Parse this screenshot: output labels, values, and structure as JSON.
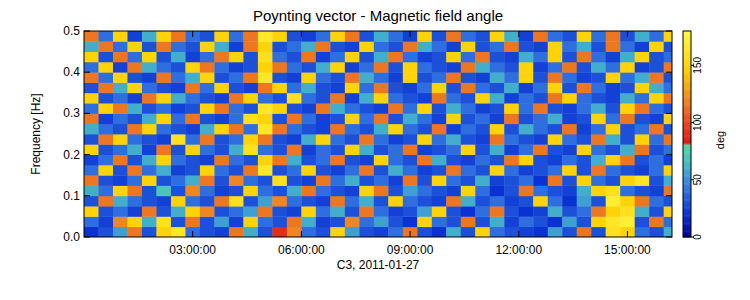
{
  "chart_data": {
    "type": "heatmap",
    "title": "Poynting vector - Magnetic field angle",
    "x_label": "C3, 2011-01-27",
    "y_label": "Frequency [Hz]",
    "xlim": [
      0,
      16.23
    ],
    "xticks": [
      {
        "value": 3,
        "label": "03:00:00"
      },
      {
        "value": 6,
        "label": "06:00:00"
      },
      {
        "value": 9,
        "label": "09:00:00"
      },
      {
        "value": 12,
        "label": "12:00:00"
      },
      {
        "value": 15,
        "label": "15:00:00"
      }
    ],
    "ylim": [
      0,
      0.5
    ],
    "yticks": [
      {
        "value": 0,
        "label": "0.0"
      },
      0.1,
      0.2,
      0.3,
      0.4,
      0.5
    ],
    "cells": {
      "x": [
        0.2,
        0.6,
        1.0,
        1.4,
        1.8,
        2.2,
        2.6,
        3.0,
        3.4,
        3.8,
        4.2,
        4.6,
        5.0,
        5.4,
        5.8,
        6.2,
        6.6,
        7.0,
        7.4,
        7.8,
        8.2,
        8.6,
        9.0,
        9.4,
        9.8,
        10.2,
        10.6,
        11.0,
        11.4,
        11.8,
        12.2,
        12.6,
        13.0,
        13.4,
        13.8,
        14.2,
        14.6,
        15.0,
        15.4,
        15.8,
        16.2
      ],
      "y": [
        0.0125,
        0.0375,
        0.0625,
        0.0875,
        0.1125,
        0.1375,
        0.1625,
        0.1875,
        0.2125,
        0.2375,
        0.2625,
        0.2875,
        0.3125,
        0.3375,
        0.3625,
        0.3875,
        0.4125,
        0.4375,
        0.4625,
        0.4875
      ],
      "values": [
        [
          20,
          30,
          55,
          115,
          30,
          150,
          165,
          40,
          30,
          25,
          115,
          60,
          30,
          90,
          120,
          40,
          30,
          150,
          55,
          30,
          25,
          40,
          115,
          30,
          20,
          60,
          30,
          150,
          40,
          30,
          25,
          20,
          55,
          30,
          115,
          30,
          160,
          150,
          40,
          30,
          60
        ],
        [
          40,
          25,
          120,
          150,
          60,
          160,
          30,
          115,
          30,
          55,
          25,
          150,
          40,
          30,
          115,
          60,
          25,
          30,
          120,
          40,
          55,
          30,
          20,
          150,
          40,
          30,
          115,
          30,
          60,
          25,
          40,
          30,
          20,
          55,
          30,
          150,
          165,
          170,
          30,
          115,
          40
        ],
        [
          150,
          30,
          40,
          25,
          115,
          30,
          60,
          150,
          120,
          30,
          40,
          55,
          115,
          30,
          25,
          150,
          40,
          60,
          30,
          115,
          40,
          25,
          30,
          55,
          150,
          30,
          20,
          40,
          115,
          30,
          20,
          25,
          60,
          30,
          40,
          115,
          150,
          160,
          60,
          30,
          150
        ],
        [
          30,
          115,
          60,
          40,
          30,
          25,
          150,
          40,
          30,
          115,
          160,
          30,
          55,
          120,
          40,
          30,
          25,
          115,
          40,
          60,
          30,
          150,
          40,
          30,
          25,
          115,
          60,
          30,
          40,
          25,
          30,
          150,
          40,
          20,
          55,
          30,
          170,
          150,
          115,
          40,
          30
        ],
        [
          60,
          40,
          150,
          115,
          30,
          70,
          30,
          120,
          40,
          25,
          30,
          150,
          40,
          30,
          60,
          115,
          40,
          30,
          25,
          150,
          115,
          30,
          55,
          40,
          30,
          25,
          150,
          40,
          20,
          30,
          115,
          40,
          30,
          25,
          60,
          150,
          160,
          40,
          30,
          25,
          115
        ],
        [
          115,
          30,
          25,
          40,
          150,
          30,
          40,
          60,
          115,
          30,
          120,
          40,
          30,
          160,
          30,
          25,
          115,
          40,
          60,
          30,
          40,
          25,
          115,
          30,
          150,
          40,
          30,
          60,
          25,
          30,
          40,
          20,
          115,
          30,
          150,
          40,
          30,
          150,
          165,
          30,
          60
        ],
        [
          40,
          150,
          30,
          115,
          40,
          60,
          25,
          30,
          150,
          40,
          30,
          115,
          165,
          30,
          40,
          150,
          30,
          25,
          40,
          115,
          30,
          60,
          40,
          25,
          30,
          115,
          40,
          30,
          150,
          40,
          25,
          30,
          40,
          150,
          30,
          115,
          40,
          30,
          25,
          40,
          150
        ],
        [
          25,
          40,
          115,
          30,
          60,
          150,
          40,
          30,
          25,
          115,
          40,
          30,
          150,
          115,
          60,
          30,
          40,
          115,
          30,
          25,
          150,
          40,
          30,
          115,
          60,
          30,
          25,
          40,
          30,
          115,
          150,
          30,
          25,
          40,
          30,
          60,
          150,
          115,
          30,
          40,
          25
        ],
        [
          150,
          30,
          40,
          60,
          25,
          115,
          30,
          150,
          40,
          30,
          60,
          160,
          40,
          30,
          115,
          25,
          40,
          30,
          150,
          60,
          30,
          40,
          115,
          25,
          30,
          40,
          150,
          30,
          60,
          25,
          40,
          115,
          30,
          25,
          150,
          40,
          30,
          60,
          115,
          30,
          40
        ],
        [
          30,
          115,
          150,
          40,
          30,
          25,
          160,
          40,
          115,
          30,
          40,
          150,
          115,
          30,
          25,
          60,
          150,
          40,
          30,
          115,
          40,
          25,
          30,
          150,
          40,
          60,
          30,
          25,
          115,
          40,
          30,
          25,
          150,
          40,
          30,
          115,
          60,
          30,
          150,
          40,
          115
        ],
        [
          60,
          40,
          30,
          115,
          150,
          40,
          30,
          25,
          60,
          150,
          115,
          40,
          165,
          115,
          40,
          30,
          25,
          115,
          40,
          30,
          60,
          150,
          40,
          30,
          115,
          25,
          40,
          30,
          150,
          30,
          60,
          40,
          30,
          115,
          25,
          40,
          150,
          30,
          40,
          115,
          30
        ],
        [
          115,
          25,
          40,
          30,
          60,
          150,
          40,
          115,
          30,
          25,
          40,
          160,
          150,
          30,
          115,
          40,
          25,
          30,
          150,
          40,
          115,
          30,
          60,
          40,
          25,
          150,
          30,
          40,
          25,
          115,
          30,
          40,
          60,
          25,
          30,
          150,
          40,
          115,
          30,
          25,
          150
        ],
        [
          40,
          150,
          115,
          60,
          30,
          40,
          25,
          30,
          150,
          115,
          40,
          30,
          165,
          150,
          30,
          25,
          115,
          60,
          40,
          30,
          25,
          115,
          40,
          150,
          30,
          60,
          40,
          25,
          30,
          150,
          40,
          115,
          30,
          25,
          40,
          60,
          30,
          150,
          115,
          40,
          30
        ],
        [
          150,
          30,
          40,
          25,
          115,
          150,
          60,
          40,
          30,
          25,
          115,
          150,
          40,
          30,
          160,
          40,
          30,
          115,
          25,
          60,
          150,
          40,
          30,
          25,
          115,
          40,
          30,
          150,
          60,
          25,
          40,
          30,
          115,
          150,
          40,
          30,
          25,
          60,
          40,
          150,
          115
        ],
        [
          30,
          115,
          60,
          150,
          40,
          30,
          25,
          115,
          40,
          150,
          30,
          25,
          115,
          150,
          40,
          60,
          30,
          25,
          150,
          40,
          115,
          30,
          25,
          40,
          150,
          30,
          115,
          40,
          30,
          60,
          25,
          40,
          150,
          30,
          115,
          40,
          25,
          30,
          150,
          60,
          40
        ],
        [
          115,
          40,
          150,
          30,
          25,
          115,
          40,
          60,
          150,
          30,
          40,
          115,
          165,
          30,
          25,
          150,
          40,
          30,
          115,
          60,
          40,
          25,
          150,
          30,
          40,
          115,
          30,
          25,
          60,
          40,
          150,
          30,
          115,
          40,
          25,
          30,
          150,
          40,
          60,
          115,
          30
        ],
        [
          40,
          150,
          25,
          115,
          60,
          40,
          30,
          150,
          115,
          40,
          25,
          30,
          150,
          115,
          40,
          30,
          60,
          150,
          25,
          40,
          115,
          30,
          150,
          40,
          30,
          25,
          115,
          60,
          40,
          30,
          150,
          25,
          40,
          115,
          30,
          60,
          40,
          150,
          25,
          30,
          115
        ],
        [
          150,
          30,
          115,
          40,
          150,
          30,
          60,
          25,
          40,
          115,
          150,
          30,
          160,
          40,
          30,
          115,
          25,
          40,
          150,
          30,
          60,
          115,
          40,
          25,
          30,
          150,
          40,
          115,
          30,
          25,
          60,
          40,
          150,
          30,
          115,
          40,
          25,
          60,
          150,
          30,
          40
        ],
        [
          60,
          115,
          40,
          150,
          30,
          115,
          40,
          30,
          150,
          60,
          25,
          115,
          150,
          30,
          40,
          60,
          115,
          30,
          25,
          150,
          40,
          30,
          115,
          60,
          40,
          25,
          150,
          30,
          40,
          115,
          30,
          25,
          150,
          40,
          60,
          30,
          115,
          40,
          25,
          150,
          30
        ],
        [
          115,
          40,
          150,
          25,
          60,
          150,
          115,
          40,
          30,
          150,
          40,
          115,
          165,
          150,
          30,
          25,
          40,
          150,
          115,
          30,
          60,
          40,
          25,
          150,
          30,
          115,
          40,
          30,
          150,
          60,
          25,
          115,
          40,
          30,
          150,
          40,
          115,
          30,
          60,
          40,
          150
        ]
      ]
    },
    "colorbar": {
      "range": [
        0,
        180
      ],
      "ticks": [
        0,
        50,
        100,
        150
      ],
      "label": "deg"
    }
  }
}
